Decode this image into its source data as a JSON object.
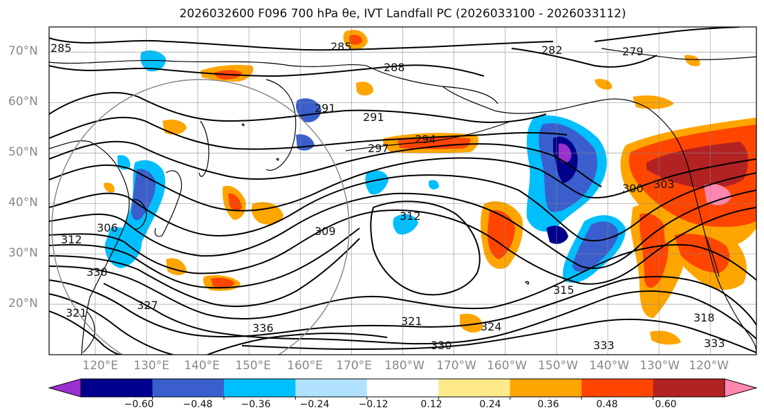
{
  "title": {
    "text": "2026032600 F096 700 hPa θe, IVT Landfall PC (2026033100 - 2026033112)"
  },
  "map": {
    "projection": "Equidistant cylindrical, Pacific centered",
    "extent": {
      "lon_min": 111,
      "lon_max": 249,
      "lat_min": 10,
      "lat_max": 75
    },
    "gridlines": true,
    "coastlines": true
  },
  "lat_ticks": [
    "20°N",
    "30°N",
    "40°N",
    "50°N",
    "60°N",
    "70°N"
  ],
  "lon_ticks": [
    "120°E",
    "130°E",
    "140°E",
    "150°E",
    "160°E",
    "170°E",
    "180°W",
    "170°W",
    "160°W",
    "150°W",
    "140°W",
    "130°W",
    "120°W"
  ],
  "contours": {
    "variable": "700 hPa theta-e (K)",
    "labels": [
      "285",
      "288",
      "282",
      "279",
      "291",
      "291",
      "294",
      "297",
      "300",
      "303",
      "306",
      "309",
      "312",
      "312",
      "315",
      "318",
      "321",
      "321",
      "324",
      "327",
      "330",
      "330",
      "333",
      "333",
      "336",
      "285"
    ]
  },
  "fill": {
    "variable": "IVT Landfall PC",
    "colorbar": {
      "ticks": [
        "−0.60",
        "−0.48",
        "−0.36",
        "−0.24",
        "−0.12",
        "0.12",
        "0.24",
        "0.36",
        "0.48",
        "0.60"
      ],
      "colors": [
        "#9b30d0",
        "#00008c",
        "#3a5fcd",
        "#00bfff",
        "#b0e2ff",
        "#ffffff",
        "#ffe98a",
        "#ffa500",
        "#ff4500",
        "#b22222",
        "#ff87b0"
      ],
      "extend": "both"
    }
  }
}
